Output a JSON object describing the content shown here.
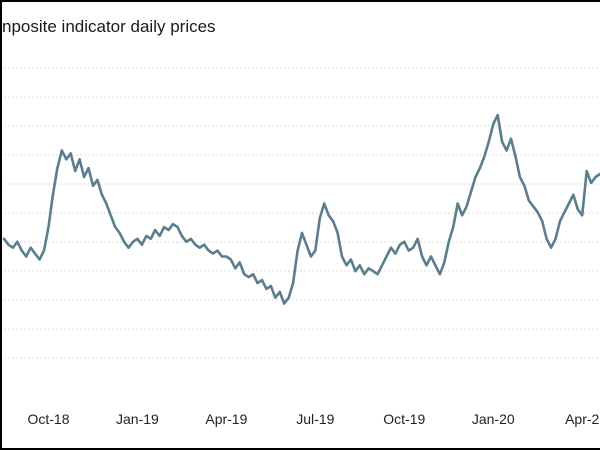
{
  "chart_data": {
    "type": "line",
    "title": "nposite indicator daily prices",
    "xlabel": "",
    "ylabel": "",
    "x_ticks": [
      {
        "label": "Oct-18",
        "pos": 0
      },
      {
        "label": "Jan-19",
        "pos": 3
      },
      {
        "label": "Apr-19",
        "pos": 6
      },
      {
        "label": "Jul-19",
        "pos": 9
      },
      {
        "label": "Oct-19",
        "pos": 12
      },
      {
        "label": "Jan-20",
        "pos": 15
      },
      {
        "label": "Apr-2",
        "pos": 18
      }
    ],
    "xlim": [
      -1.5,
      18.6
    ],
    "ylim": [
      0,
      11
    ],
    "grid": true,
    "grid_lines": 11,
    "line_color": "#5a7e8e",
    "series": [
      {
        "x": [
          -1.5,
          -1.35,
          -1.2,
          -1.05,
          -0.9,
          -0.75,
          -0.6,
          -0.45,
          -0.3,
          -0.15,
          0,
          0.15,
          0.3,
          0.45,
          0.6,
          0.75,
          0.9,
          1.05,
          1.2,
          1.35,
          1.5,
          1.65,
          1.8,
          1.95,
          2.1,
          2.25,
          2.4,
          2.55,
          2.7,
          2.85,
          3,
          3.15,
          3.3,
          3.45,
          3.6,
          3.75,
          3.9,
          4.05,
          4.2,
          4.35,
          4.5,
          4.65,
          4.8,
          4.95,
          5.1,
          5.25,
          5.4,
          5.55,
          5.7,
          5.85,
          6,
          6.15,
          6.3,
          6.45,
          6.6,
          6.75,
          6.9,
          7.05,
          7.2,
          7.35,
          7.5,
          7.65,
          7.8,
          7.95,
          8.1,
          8.25,
          8.4,
          8.55,
          8.7,
          8.85,
          9,
          9.15,
          9.3,
          9.45,
          9.6,
          9.75,
          9.9,
          10.05,
          10.2,
          10.35,
          10.5,
          10.65,
          10.8,
          10.95,
          11.1,
          11.25,
          11.4,
          11.55,
          11.7,
          11.85,
          12,
          12.15,
          12.3,
          12.45,
          12.6,
          12.75,
          12.9,
          13.05,
          13.2,
          13.35,
          13.5,
          13.65,
          13.8,
          13.95,
          14.1,
          14.25,
          14.4,
          14.55,
          14.7,
          14.85,
          15,
          15.15,
          15.3,
          15.45,
          15.6,
          15.75,
          15.9,
          16.05,
          16.2,
          16.35,
          16.5,
          16.65,
          16.8,
          16.95,
          17.1,
          17.25,
          17.4,
          17.55,
          17.7,
          17.85,
          18,
          18.15,
          18.3,
          18.45,
          18.6
        ],
        "values": [
          5.2,
          5.0,
          4.9,
          5.1,
          4.8,
          4.6,
          4.9,
          4.7,
          4.5,
          4.8,
          5.6,
          6.7,
          7.6,
          8.2,
          7.9,
          8.1,
          7.5,
          7.9,
          7.3,
          7.6,
          7.0,
          7.2,
          6.7,
          6.4,
          6.0,
          5.6,
          5.4,
          5.1,
          4.9,
          5.1,
          5.2,
          5.0,
          5.3,
          5.2,
          5.5,
          5.3,
          5.6,
          5.5,
          5.7,
          5.6,
          5.3,
          5.1,
          5.2,
          5.0,
          4.9,
          5.0,
          4.8,
          4.7,
          4.8,
          4.6,
          4.6,
          4.5,
          4.2,
          4.4,
          4.0,
          3.9,
          4.0,
          3.7,
          3.8,
          3.5,
          3.6,
          3.2,
          3.4,
          3.0,
          3.2,
          3.7,
          4.8,
          5.4,
          5.0,
          4.6,
          4.8,
          5.9,
          6.4,
          6.0,
          5.8,
          5.4,
          4.6,
          4.3,
          4.5,
          4.1,
          4.3,
          4.0,
          4.2,
          4.1,
          4.0,
          4.3,
          4.6,
          4.9,
          4.7,
          5.0,
          5.1,
          4.8,
          4.9,
          5.2,
          4.6,
          4.3,
          4.6,
          4.3,
          4.0,
          4.4,
          5.1,
          5.6,
          6.4,
          6.0,
          6.3,
          6.8,
          7.3,
          7.6,
          8.0,
          8.5,
          9.1,
          9.4,
          8.5,
          8.2,
          8.6,
          8.0,
          7.3,
          7.0,
          6.5,
          6.3,
          6.1,
          5.8,
          5.2,
          4.9,
          5.2,
          5.8,
          6.1,
          6.4,
          6.7,
          6.2,
          6.0,
          7.5,
          7.1,
          7.3,
          7.4
        ]
      }
    ]
  }
}
